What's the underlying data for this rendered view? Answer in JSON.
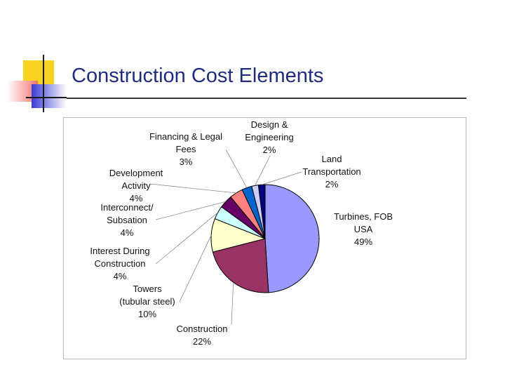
{
  "slide": {
    "title": "Construction Cost Elements"
  },
  "colors": {
    "title": "#1f2d7a",
    "deco_yellow": "#f7d21e",
    "deco_red": "#f0736f",
    "deco_blue": "#3b3bd6",
    "deco_line": "#1a1a1a"
  },
  "chart_data": {
    "type": "pie",
    "title": "",
    "slices": [
      {
        "lines": [
          "Turbines, FOB",
          "USA",
          "49%"
        ],
        "value": 49,
        "color": "#9999ff"
      },
      {
        "lines": [
          "Construction",
          "22%"
        ],
        "value": 22,
        "color": "#993366"
      },
      {
        "lines": [
          "Towers",
          "(tubular steel)",
          "10%"
        ],
        "value": 10,
        "color": "#ffffcc"
      },
      {
        "lines": [
          "Interest During",
          "Construction",
          "4%"
        ],
        "value": 4,
        "color": "#ccffff"
      },
      {
        "lines": [
          "Interconnect/",
          "Subsation",
          "4%"
        ],
        "value": 4,
        "color": "#660066"
      },
      {
        "lines": [
          "Development",
          "Activity",
          "4%"
        ],
        "value": 4,
        "color": "#ff8080"
      },
      {
        "lines": [
          "Financing & Legal",
          "Fees",
          "3%"
        ],
        "value": 3,
        "color": "#0066cc"
      },
      {
        "lines": [
          "Design &",
          "Engineering",
          "2%"
        ],
        "value": 2,
        "color": "#ccccff"
      },
      {
        "lines": [
          "Land",
          "Transportation",
          "2%"
        ],
        "value": 2,
        "color": "#000080"
      }
    ]
  }
}
